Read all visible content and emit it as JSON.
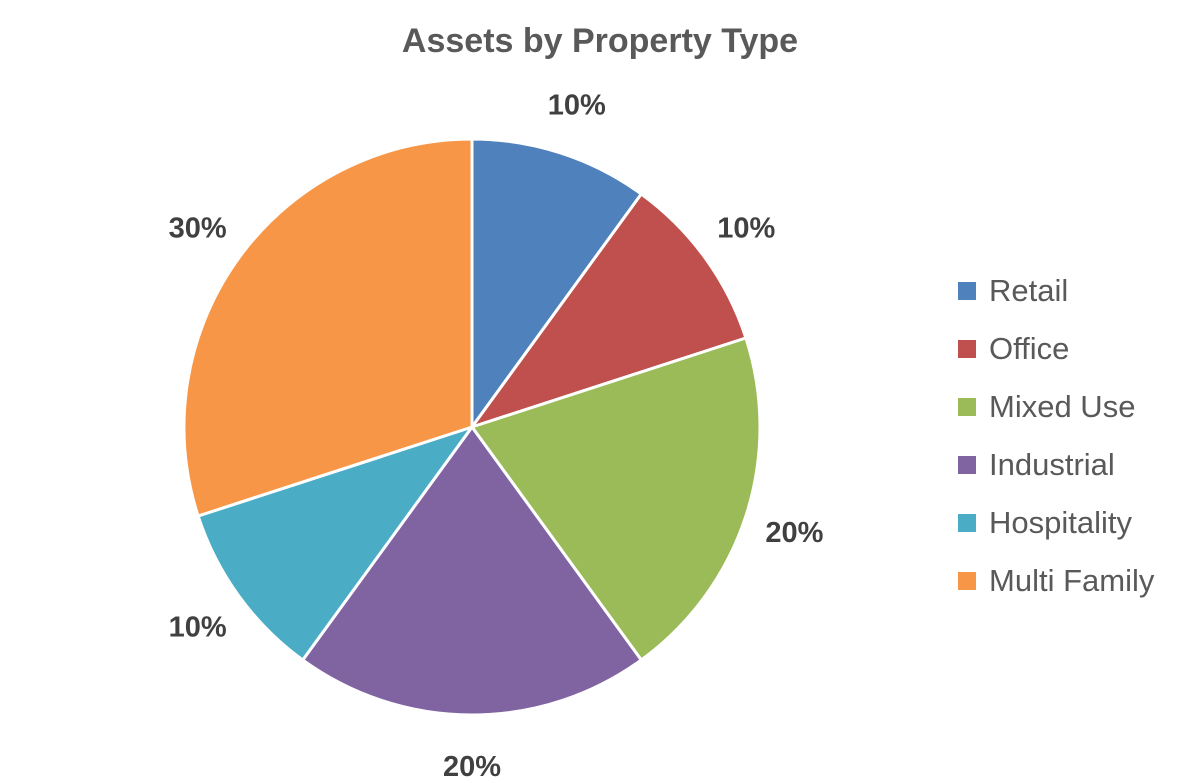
{
  "chart_data": {
    "type": "pie",
    "title": "Assets by Property Type",
    "slices": [
      {
        "label": "Retail",
        "value": 10,
        "value_label": "10%",
        "color": "#4F81BD"
      },
      {
        "label": "Office",
        "value": 10,
        "value_label": "10%",
        "color": "#C0504D"
      },
      {
        "label": "Mixed Use",
        "value": 20,
        "value_label": "20%",
        "color": "#9BBB59"
      },
      {
        "label": "Industrial",
        "value": 20,
        "value_label": "20%",
        "color": "#8064A2"
      },
      {
        "label": "Hospitality",
        "value": 10,
        "value_label": "10%",
        "color": "#4BACC6"
      },
      {
        "label": "Multi Family",
        "value": 30,
        "value_label": "30%",
        "color": "#F79646"
      }
    ],
    "legend_position": "right"
  }
}
